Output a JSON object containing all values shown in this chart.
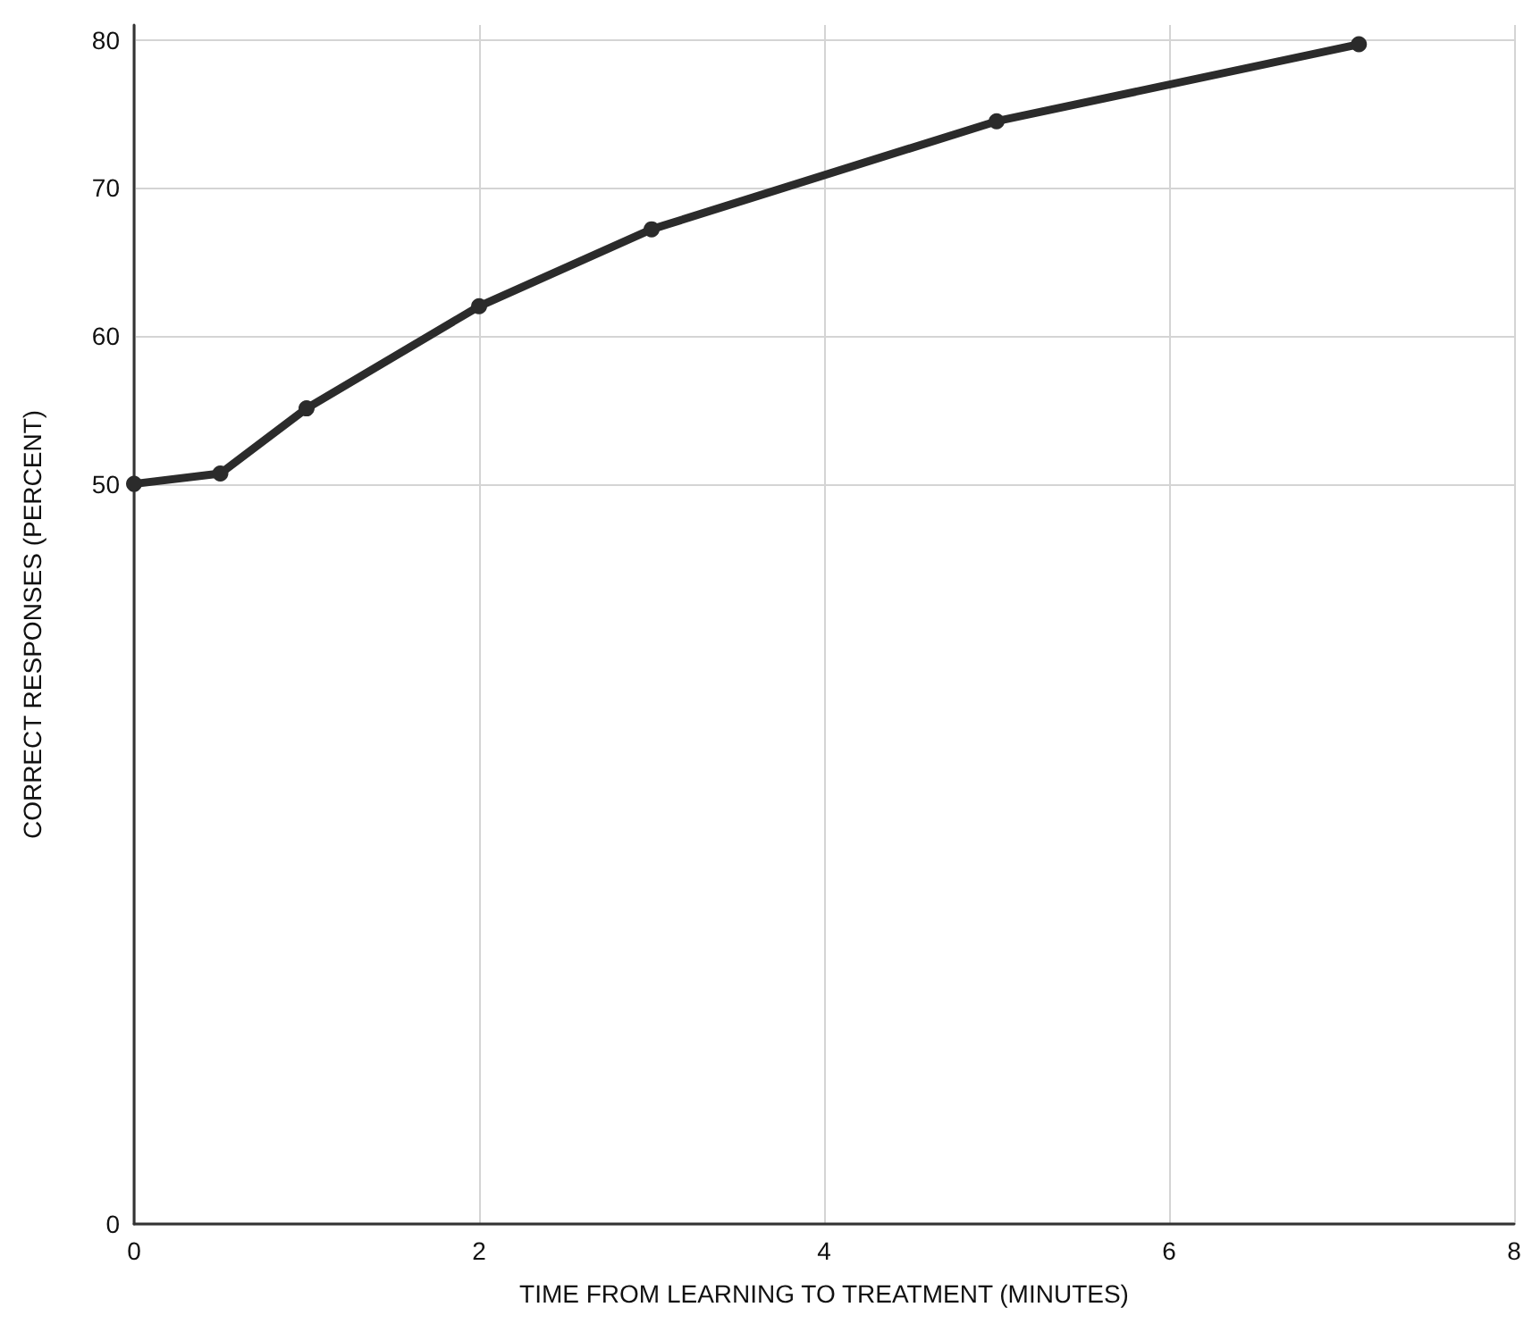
{
  "chart_data": {
    "type": "line",
    "xlabel": "TIME FROM LEARNING TO TREATMENT (MINUTES)",
    "ylabel": "CORRECT RESPONSES (PERCENT)",
    "x": [
      0,
      0.5,
      1,
      2,
      3,
      5,
      7.1
    ],
    "series": [
      {
        "color": "#2b2b2b",
        "values": [
          50,
          50.7,
          55.1,
          62,
          67.2,
          74.5,
          79.7
        ]
      }
    ],
    "xlim": [
      0,
      8
    ],
    "xticks": [
      0,
      2,
      4,
      6,
      8
    ],
    "ylim": [
      0,
      81
    ],
    "yticks": [
      0,
      50,
      60,
      70,
      80
    ],
    "grid": true,
    "marker": "circle",
    "line_style": "solid"
  }
}
